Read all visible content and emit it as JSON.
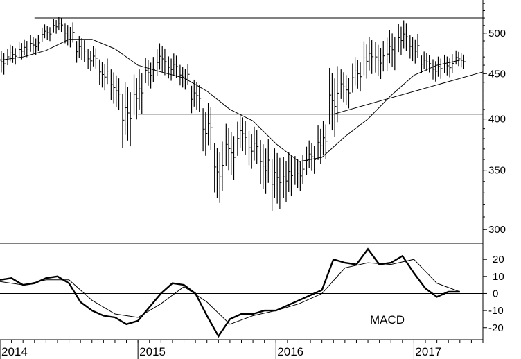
{
  "chart_data": [
    {
      "type": "line",
      "style": "weekly-bar price chart with moving average and trendlines",
      "y_scale": "log",
      "ylim": [
        290,
        545
      ],
      "x_range": [
        "2014-01",
        "2017-07"
      ],
      "yticks": [
        300,
        350,
        400,
        450,
        500
      ],
      "xtick_labels": [
        "2014",
        "2015",
        "2016",
        "2017"
      ],
      "xtick_dates": [
        "2014-01",
        "2015-01",
        "2016-01",
        "2017-01"
      ],
      "grid": false,
      "bars": [
        [
          "2014-01",
          482,
          448
        ],
        [
          "2014-02",
          485,
          458
        ],
        [
          "2014-03",
          492,
          465
        ],
        [
          "2014-04",
          498,
          470
        ],
        [
          "2014-05",
          512,
          488
        ],
        [
          "2014-06",
          522,
          498
        ],
        [
          "2014-07",
          515,
          480
        ],
        [
          "2014-08",
          498,
          462
        ],
        [
          "2014-09",
          485,
          452
        ],
        [
          "2014-10",
          470,
          430
        ],
        [
          "2014-11",
          455,
          408
        ],
        [
          "2014-12",
          440,
          365
        ],
        [
          "2015-01",
          455,
          395
        ],
        [
          "2015-02",
          470,
          430
        ],
        [
          "2015-03",
          488,
          445
        ],
        [
          "2015-04",
          475,
          440
        ],
        [
          "2015-05",
          462,
          430
        ],
        [
          "2015-06",
          445,
          405
        ],
        [
          "2015-07",
          420,
          362
        ],
        [
          "2015-08",
          380,
          320
        ],
        [
          "2015-09",
          395,
          340
        ],
        [
          "2015-10",
          405,
          360
        ],
        [
          "2015-11",
          392,
          348
        ],
        [
          "2015-12",
          380,
          325
        ],
        [
          "2016-01",
          372,
          312
        ],
        [
          "2016-02",
          368,
          320
        ],
        [
          "2016-03",
          365,
          330
        ],
        [
          "2016-04",
          380,
          345
        ],
        [
          "2016-05",
          400,
          355
        ],
        [
          "2016-06",
          463,
          380
        ],
        [
          "2016-07",
          455,
          410
        ],
        [
          "2016-08",
          470,
          425
        ],
        [
          "2016-09",
          495,
          440
        ],
        [
          "2016-10",
          490,
          440
        ],
        [
          "2016-11",
          505,
          450
        ],
        [
          "2016-12",
          518,
          470
        ],
        [
          "2017-01",
          500,
          460
        ],
        [
          "2017-02",
          478,
          450
        ],
        [
          "2017-03",
          472,
          440
        ],
        [
          "2017-04",
          475,
          445
        ],
        [
          "2017-05",
          478,
          455
        ]
      ],
      "moving_average": [
        [
          "2014-01",
          466
        ],
        [
          "2014-03",
          470
        ],
        [
          "2014-05",
          478
        ],
        [
          "2014-07",
          492
        ],
        [
          "2014-09",
          492
        ],
        [
          "2014-11",
          480
        ],
        [
          "2015-01",
          460
        ],
        [
          "2015-03",
          452
        ],
        [
          "2015-05",
          445
        ],
        [
          "2015-07",
          430
        ],
        [
          "2015-09",
          410
        ],
        [
          "2015-11",
          398
        ],
        [
          "2016-01",
          375
        ],
        [
          "2016-03",
          358
        ],
        [
          "2016-05",
          362
        ],
        [
          "2016-07",
          382
        ],
        [
          "2016-09",
          400
        ],
        [
          "2016-11",
          425
        ],
        [
          "2017-01",
          448
        ],
        [
          "2017-03",
          460
        ],
        [
          "2017-05",
          466
        ]
      ],
      "lines": [
        {
          "name": "resistance",
          "from": [
            "2014-04",
            520
          ],
          "to": [
            "2017-07",
            520
          ]
        },
        {
          "name": "support",
          "from": [
            "2015-01",
            405
          ],
          "to": [
            "2017-07",
            405
          ]
        },
        {
          "name": "uptrend",
          "from": [
            "2016-06",
            405
          ],
          "to": [
            "2017-07",
            452
          ]
        }
      ]
    },
    {
      "type": "line",
      "indicator": "MACD",
      "annotation": "MACD",
      "ylim": [
        -27,
        29
      ],
      "yticks": [
        20,
        10,
        0,
        -10,
        -20
      ],
      "zero_line": true,
      "grid": false,
      "series": [
        {
          "role": "macd",
          "values": [
            [
              "2014-01",
              8
            ],
            [
              "2014-02",
              9
            ],
            [
              "2014-03",
              5
            ],
            [
              "2014-04",
              6
            ],
            [
              "2014-05",
              9
            ],
            [
              "2014-06",
              10
            ],
            [
              "2014-07",
              6
            ],
            [
              "2014-08",
              -5
            ],
            [
              "2014-09",
              -10
            ],
            [
              "2014-10",
              -13
            ],
            [
              "2014-11",
              -14
            ],
            [
              "2014-12",
              -18
            ],
            [
              "2015-01",
              -16
            ],
            [
              "2015-02",
              -8
            ],
            [
              "2015-03",
              0
            ],
            [
              "2015-04",
              6
            ],
            [
              "2015-05",
              5
            ],
            [
              "2015-06",
              0
            ],
            [
              "2015-07",
              -13
            ],
            [
              "2015-08",
              -25
            ],
            [
              "2015-09",
              -15
            ],
            [
              "2015-10",
              -12
            ],
            [
              "2015-11",
              -12
            ],
            [
              "2015-12",
              -10
            ],
            [
              "2016-01",
              -10
            ],
            [
              "2016-02",
              -7
            ],
            [
              "2016-03",
              -4
            ],
            [
              "2016-04",
              -1
            ],
            [
              "2016-05",
              2
            ],
            [
              "2016-06",
              20
            ],
            [
              "2016-07",
              18
            ],
            [
              "2016-08",
              17
            ],
            [
              "2016-09",
              26
            ],
            [
              "2016-10",
              17
            ],
            [
              "2016-11",
              18
            ],
            [
              "2016-12",
              22
            ],
            [
              "2017-01",
              12
            ],
            [
              "2017-02",
              3
            ],
            [
              "2017-03",
              -2
            ],
            [
              "2017-04",
              1
            ],
            [
              "2017-05",
              1
            ]
          ]
        },
        {
          "role": "signal",
          "values": [
            [
              "2014-01",
              7
            ],
            [
              "2014-03",
              5
            ],
            [
              "2014-05",
              8
            ],
            [
              "2014-07",
              8
            ],
            [
              "2014-09",
              -4
            ],
            [
              "2014-11",
              -12
            ],
            [
              "2015-01",
              -14
            ],
            [
              "2015-03",
              -6
            ],
            [
              "2015-05",
              4
            ],
            [
              "2015-07",
              -5
            ],
            [
              "2015-09",
              -18
            ],
            [
              "2015-11",
              -13
            ],
            [
              "2016-01",
              -10
            ],
            [
              "2016-03",
              -6
            ],
            [
              "2016-05",
              0
            ],
            [
              "2016-07",
              15
            ],
            [
              "2016-09",
              18
            ],
            [
              "2016-11",
              17
            ],
            [
              "2017-01",
              20
            ],
            [
              "2017-03",
              6
            ],
            [
              "2017-05",
              1
            ]
          ]
        }
      ]
    }
  ]
}
